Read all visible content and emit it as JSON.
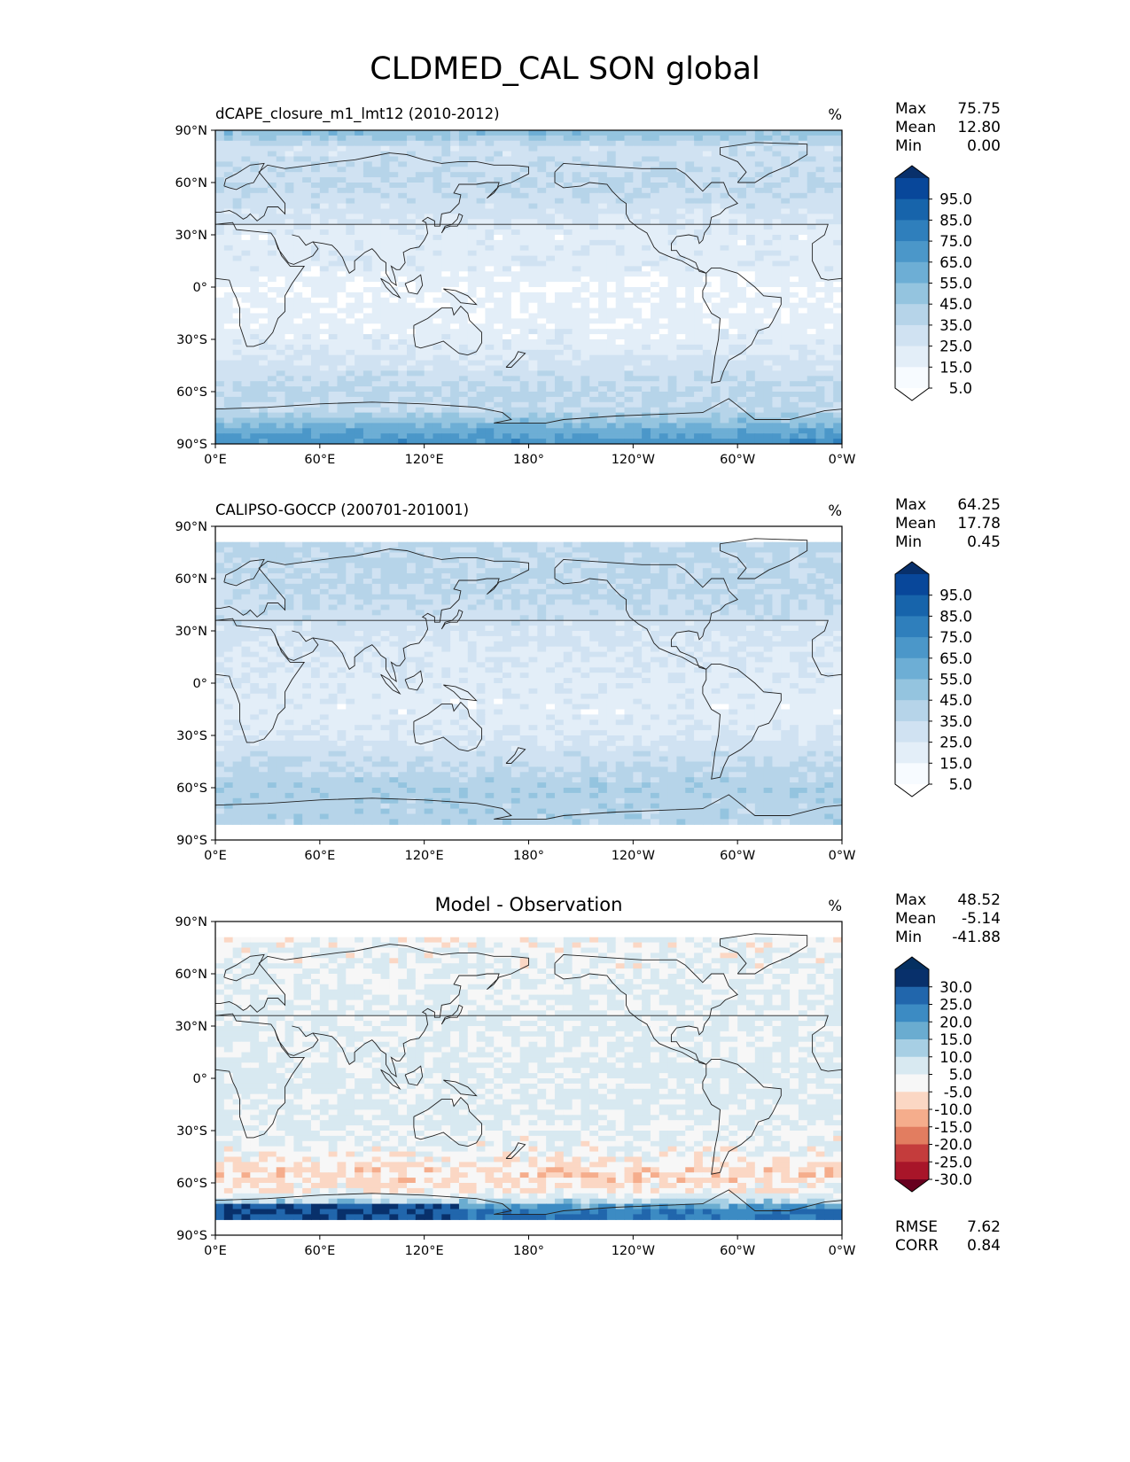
{
  "title": "CLDMED_CAL SON global",
  "chart_data": [
    {
      "type": "heatmap",
      "panel": "model",
      "title": "dCAPE_closure_m1_lmt12 (2010-2012)",
      "units": "%",
      "stats": [
        {
          "label": "Max",
          "value": "75.75"
        },
        {
          "label": "Mean",
          "value": "12.80"
        },
        {
          "label": "Min",
          "value": "0.00"
        }
      ],
      "xticks": [
        "0°E",
        "60°E",
        "120°E",
        "180°",
        "120°W",
        "60°W",
        "0°W"
      ],
      "yticks": [
        "90°N",
        "60°N",
        "30°N",
        "0°",
        "30°S",
        "60°S",
        "90°S"
      ],
      "xlim": [
        0,
        360
      ],
      "ylim": [
        -90,
        90
      ],
      "colormap": "Blues",
      "colorbar_levels": [
        "95.0",
        "85.0",
        "75.0",
        "65.0",
        "55.0",
        "45.0",
        "35.0",
        "25.0",
        "15.0",
        "5.0"
      ],
      "colorbar_colors": [
        "#08306b",
        "#08479a",
        "#1764ab",
        "#2f7fbc",
        "#4b97c9",
        "#6daed5",
        "#94c4df",
        "#b6d4e9",
        "#d0e2f2",
        "#e3eef8",
        "#f7fbff",
        "#ffffff"
      ],
      "colorbar_extend": "both",
      "data_lat_range": [
        -90,
        90
      ],
      "zonal_mean_profile": [
        {
          "lat": 88,
          "value": 40
        },
        {
          "lat": 80,
          "value": 20
        },
        {
          "lat": 70,
          "value": 22
        },
        {
          "lat": 60,
          "value": 24
        },
        {
          "lat": 45,
          "value": 20
        },
        {
          "lat": 30,
          "value": 10
        },
        {
          "lat": 15,
          "value": 12
        },
        {
          "lat": 0,
          "value": 6
        },
        {
          "lat": -15,
          "value": 8
        },
        {
          "lat": -30,
          "value": 10
        },
        {
          "lat": -45,
          "value": 18
        },
        {
          "lat": -60,
          "value": 28
        },
        {
          "lat": -70,
          "value": 25
        },
        {
          "lat": -80,
          "value": 48
        },
        {
          "lat": -88,
          "value": 60
        }
      ]
    },
    {
      "type": "heatmap",
      "panel": "observation",
      "title": "CALIPSO-GOCCP (200701-201001)",
      "units": "%",
      "stats": [
        {
          "label": "Max",
          "value": "64.25"
        },
        {
          "label": "Mean",
          "value": "17.78"
        },
        {
          "label": "Min",
          "value": "0.45"
        }
      ],
      "xticks": [
        "0°E",
        "60°E",
        "120°E",
        "180°",
        "120°W",
        "60°W",
        "0°W"
      ],
      "yticks": [
        "90°N",
        "60°N",
        "30°N",
        "0°",
        "30°S",
        "60°S",
        "90°S"
      ],
      "xlim": [
        0,
        360
      ],
      "ylim": [
        -90,
        90
      ],
      "colormap": "Blues",
      "colorbar_levels": [
        "95.0",
        "85.0",
        "75.0",
        "65.0",
        "55.0",
        "45.0",
        "35.0",
        "25.0",
        "15.0",
        "5.0"
      ],
      "colorbar_colors": [
        "#08306b",
        "#08479a",
        "#1764ab",
        "#2f7fbc",
        "#4b97c9",
        "#6daed5",
        "#94c4df",
        "#b6d4e9",
        "#d0e2f2",
        "#e3eef8",
        "#f7fbff",
        "#ffffff"
      ],
      "colorbar_extend": "both",
      "data_lat_range": [
        -82,
        82
      ],
      "zonal_mean_profile": [
        {
          "lat": 80,
          "value": 28
        },
        {
          "lat": 70,
          "value": 26
        },
        {
          "lat": 60,
          "value": 28
        },
        {
          "lat": 45,
          "value": 24
        },
        {
          "lat": 30,
          "value": 18
        },
        {
          "lat": 15,
          "value": 14
        },
        {
          "lat": 0,
          "value": 12
        },
        {
          "lat": -15,
          "value": 10
        },
        {
          "lat": -30,
          "value": 14
        },
        {
          "lat": -45,
          "value": 24
        },
        {
          "lat": -60,
          "value": 32
        },
        {
          "lat": -72,
          "value": 30
        },
        {
          "lat": -80,
          "value": 30
        }
      ]
    },
    {
      "type": "heatmap",
      "panel": "difference",
      "title": "Model - Observation",
      "units": "%",
      "stats": [
        {
          "label": "Max",
          "value": "48.52"
        },
        {
          "label": "Mean",
          "value": "-5.14"
        },
        {
          "label": "Min",
          "value": "-41.88"
        }
      ],
      "xticks": [
        "0°E",
        "60°E",
        "120°E",
        "180°",
        "120°W",
        "60°W",
        "0°W"
      ],
      "yticks": [
        "90°N",
        "60°N",
        "30°N",
        "0°",
        "30°S",
        "60°S",
        "90°S"
      ],
      "xlim": [
        0,
        360
      ],
      "ylim": [
        -90,
        90
      ],
      "colormap": "RdBu",
      "colorbar_levels": [
        "30.0",
        "25.0",
        "20.0",
        "15.0",
        "10.0",
        "5.0",
        "-5.0",
        "-10.0",
        "-15.0",
        "-20.0",
        "-25.0",
        "-30.0"
      ],
      "colorbar_colors": [
        "#053061",
        "#08306b",
        "#2166ac",
        "#3c8bc3",
        "#6aacd0",
        "#a7cfe4",
        "#d8e9f1",
        "#f7f7f7",
        "#fbd7c4",
        "#f5ad8c",
        "#e27d60",
        "#c43c3c",
        "#a81529",
        "#67001f"
      ],
      "colorbar_extend": "both",
      "data_lat_range": [
        -82,
        82
      ],
      "zonal_mean_profile": [
        {
          "lat": 80,
          "value": -6
        },
        {
          "lat": 60,
          "value": -5
        },
        {
          "lat": 40,
          "value": -4
        },
        {
          "lat": 20,
          "value": -4
        },
        {
          "lat": 0,
          "value": -3
        },
        {
          "lat": -20,
          "value": -3
        },
        {
          "lat": -40,
          "value": -6
        },
        {
          "lat": -55,
          "value": -12
        },
        {
          "lat": -65,
          "value": -8
        },
        {
          "lat": -76,
          "value": 20
        }
      ],
      "metrics": [
        {
          "label": "RMSE",
          "value": "7.62"
        },
        {
          "label": "CORR",
          "value": "0.84"
        }
      ]
    }
  ]
}
